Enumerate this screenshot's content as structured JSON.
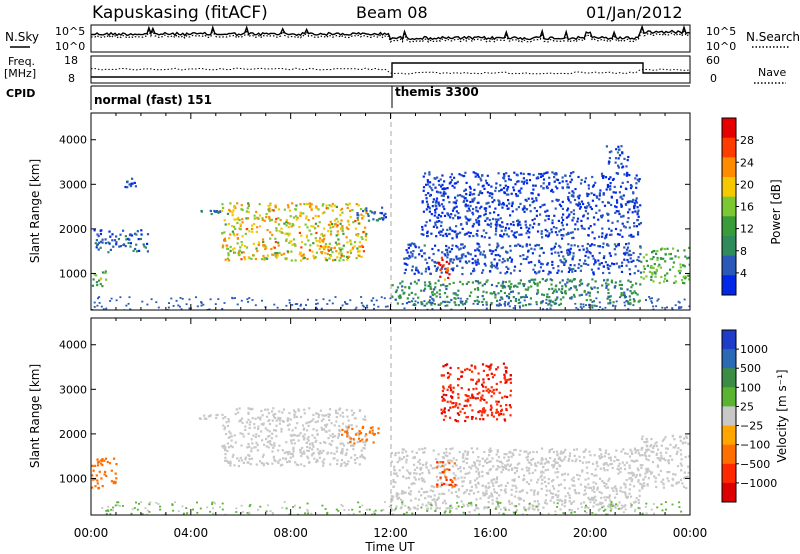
{
  "header": {
    "station": "Kapuskasing (fitACF)",
    "beam": "Beam 08",
    "date": "01/Jan/2012"
  },
  "side_labels": {
    "nsky": "N.Sky",
    "nsearch": "N.Search",
    "freq": "Freq.",
    "freq_unit": "[MHz]",
    "nave": "Nave",
    "cpid": "CPID"
  },
  "cpid_modes": [
    {
      "label": "normal (fast) 151",
      "start_hour": 0
    },
    {
      "label": "themis 3300",
      "start_hour": 12
    }
  ],
  "noise_axis": {
    "left_ticks": [
      "10^5",
      "10^0"
    ],
    "right_ticks": [
      "10^5",
      "10^0"
    ]
  },
  "freq_axis": {
    "left_ticks": [
      "18",
      "8"
    ],
    "right_ticks": [
      "60",
      "0"
    ]
  },
  "colors": {
    "power": [
      "#0028e6",
      "#2a59b8",
      "#2f8a5c",
      "#3a9b3a",
      "#7cc832",
      "#f5c800",
      "#ff8c00",
      "#ff3c00",
      "#e60000"
    ],
    "velocity": [
      "#1e3cc8",
      "#2a69b4",
      "#3c8c46",
      "#5ab432",
      "#c8c8c8",
      "#ffa500",
      "#ff6e00",
      "#ff2800",
      "#dc0000"
    ],
    "dashed_line": "#aaaaaa"
  },
  "chart_data": [
    {
      "type": "heatmap",
      "title": "Power",
      "ylabel": "Slant Range [km]",
      "xlabel": "Time UT",
      "xlim": [
        0,
        24
      ],
      "ylim": [
        180,
        4600
      ],
      "x_ticks": [
        "00:00",
        "04:00",
        "08:00",
        "12:00",
        "16:00",
        "20:00",
        "00:00"
      ],
      "y_ticks": [
        1000,
        2000,
        3000,
        4000
      ],
      "colorbar": {
        "label": "Power [dB]",
        "ticks": [
          "4",
          "8",
          "12",
          "16",
          "20",
          "24",
          "28"
        ],
        "range": [
          0,
          30
        ]
      },
      "features": [
        {
          "t": [
            0.0,
            0.6
          ],
          "r": [
            700,
            1100
          ],
          "v": 14
        },
        {
          "t": [
            0.1,
            2.3
          ],
          "r": [
            1500,
            2000
          ],
          "v": 5
        },
        {
          "t": [
            1.3,
            1.8
          ],
          "r": [
            2950,
            3150
          ],
          "v": 4
        },
        {
          "t": [
            4.3,
            5.2
          ],
          "r": [
            2350,
            2450
          ],
          "v": 7
        },
        {
          "t": [
            5.2,
            11.0
          ],
          "r": [
            1300,
            2600
          ],
          "v": 18
        },
        {
          "t": [
            8.5,
            11.0
          ],
          "r": [
            1500,
            1650
          ],
          "v": 22
        },
        {
          "t": [
            10.5,
            11.8
          ],
          "r": [
            2200,
            2550
          ],
          "v": 6
        },
        {
          "t": [
            12.0,
            22.0
          ],
          "r": [
            300,
            900
          ],
          "v": 9
        },
        {
          "t": [
            12.5,
            22.0
          ],
          "r": [
            1000,
            1700
          ],
          "v": 4
        },
        {
          "t": [
            13.9,
            14.4
          ],
          "r": [
            800,
            1400
          ],
          "v": 26
        },
        {
          "t": [
            13.2,
            22.0
          ],
          "r": [
            1800,
            3300
          ],
          "v": 3
        },
        {
          "t": [
            20.6,
            21.5
          ],
          "r": [
            3400,
            3900
          ],
          "v": 4
        },
        {
          "t": [
            22.0,
            24.0
          ],
          "r": [
            800,
            1600
          ],
          "v": 12
        }
      ]
    },
    {
      "type": "heatmap",
      "title": "Velocity",
      "ylabel": "Slant Range [km]",
      "xlabel": "Time UT",
      "xlim": [
        0,
        24
      ],
      "ylim": [
        180,
        4600
      ],
      "x_ticks": [
        "00:00",
        "04:00",
        "08:00",
        "12:00",
        "16:00",
        "20:00",
        "00:00"
      ],
      "y_ticks": [
        1000,
        2000,
        3000,
        4000
      ],
      "colorbar": {
        "label": "Velocity [m s⁻¹]",
        "ticks": [
          "1000",
          "500",
          "100",
          "25",
          "−25",
          "−100",
          "−500",
          "−1000"
        ]
      },
      "features": [
        {
          "t": [
            0.0,
            1.0
          ],
          "r": [
            800,
            1500
          ],
          "v": -150
        },
        {
          "t": [
            4.3,
            5.2
          ],
          "r": [
            2350,
            2450
          ],
          "v": 0
        },
        {
          "t": [
            5.2,
            11.0
          ],
          "r": [
            1300,
            2600
          ],
          "v": 0
        },
        {
          "t": [
            10.0,
            11.5
          ],
          "r": [
            1800,
            2200
          ],
          "v": -200
        },
        {
          "t": [
            12.0,
            22.0
          ],
          "r": [
            300,
            1700
          ],
          "v": 0
        },
        {
          "t": [
            13.8,
            14.6
          ],
          "r": [
            800,
            1400
          ],
          "v": -300
        },
        {
          "t": [
            14.0,
            16.8
          ],
          "r": [
            2300,
            3600
          ],
          "v": -700
        },
        {
          "t": [
            22.0,
            24.0
          ],
          "r": [
            800,
            2000
          ],
          "v": 0
        }
      ]
    }
  ]
}
